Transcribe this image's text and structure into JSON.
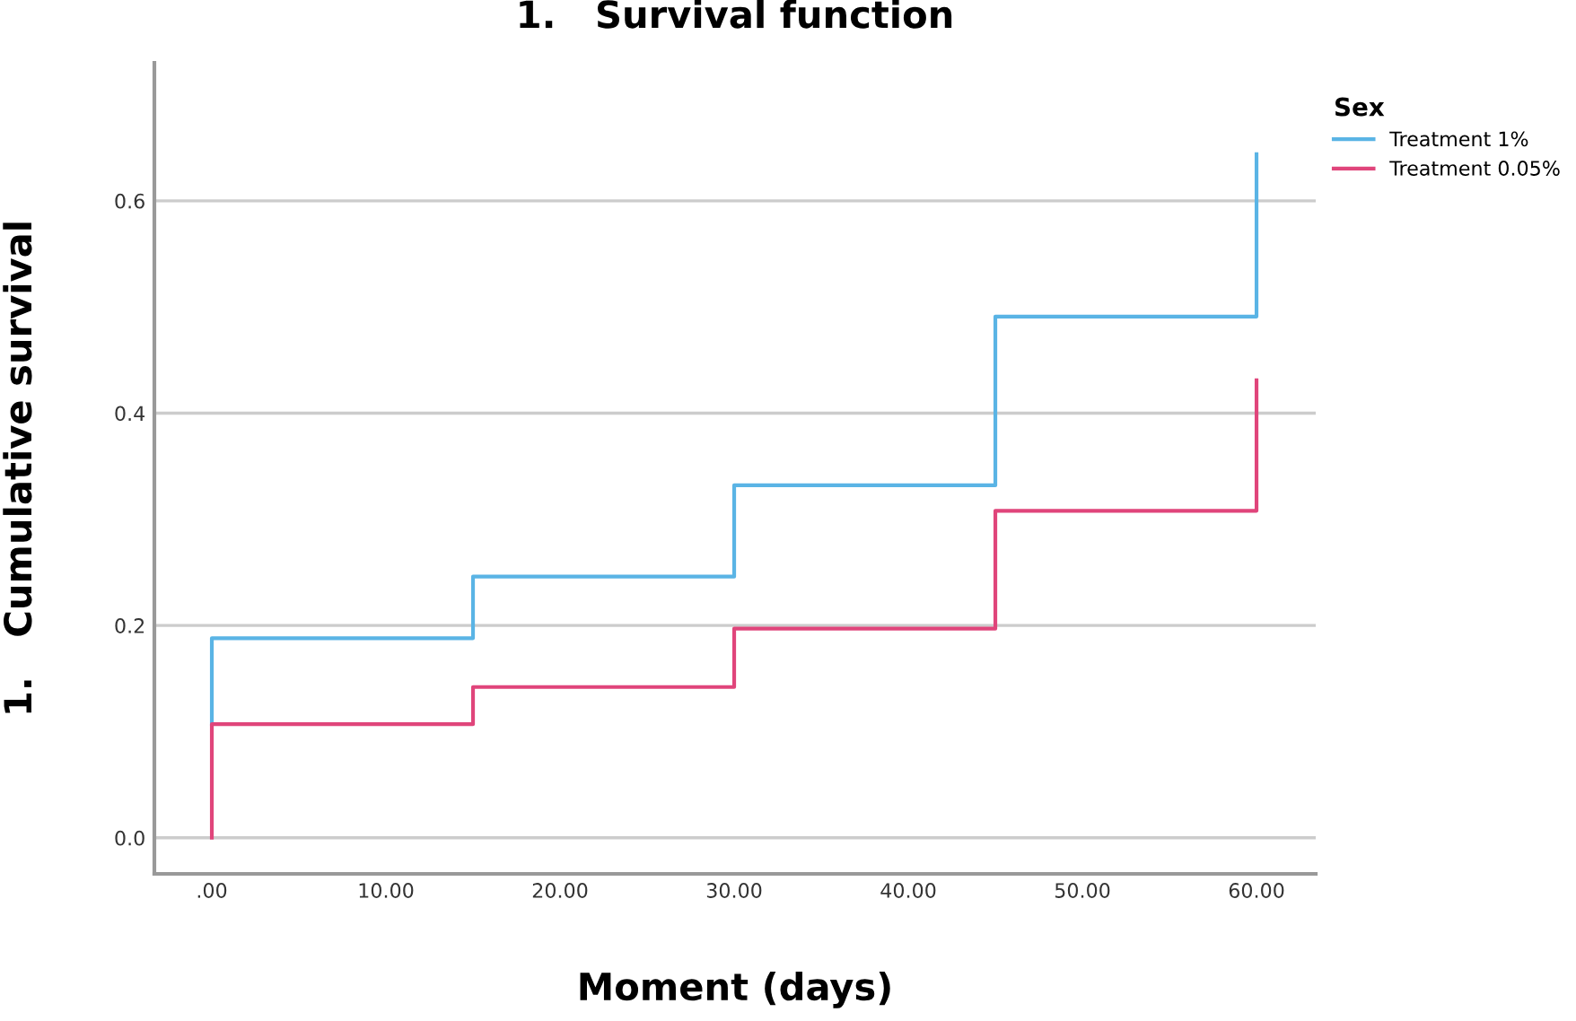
{
  "chart_data": {
    "type": "step",
    "title": "1.   Survival function",
    "xlabel": "Moment (days)",
    "ylabel": "1.   Cumulative survival",
    "legend_title": "Sex",
    "series": [
      {
        "name": "Treatment 1%",
        "color": "#5ab4e5",
        "x": [
          0,
          0,
          15,
          30,
          45,
          60,
          60
        ],
        "values": [
          0.107,
          0.188,
          0.246,
          0.332,
          0.491,
          0.491,
          0.644
        ]
      },
      {
        "name": "Treatment 0.05%",
        "color": "#e0457b",
        "x": [
          0,
          0,
          15,
          30,
          45,
          60,
          60
        ],
        "values": [
          0,
          0.107,
          0.142,
          0.197,
          0.308,
          0.308,
          0.431
        ]
      }
    ],
    "xlim": [
      -3.3,
      63.4
    ],
    "xticks": [
      {
        "value": 0,
        "label": ".00"
      },
      {
        "value": 10,
        "label": "10.00"
      },
      {
        "value": 20,
        "label": "20.00"
      },
      {
        "value": 30,
        "label": "30.00"
      },
      {
        "value": 40,
        "label": "40.00"
      },
      {
        "value": 50,
        "label": "50.00"
      },
      {
        "value": 60,
        "label": "60.00"
      }
    ],
    "ylim": [
      -0.034,
      0.73
    ],
    "yticks": [
      {
        "value": 0,
        "label": "0.0"
      },
      {
        "value": 0.2,
        "label": "0.2"
      },
      {
        "value": 0.4,
        "label": "0.4"
      },
      {
        "value": 0.6,
        "label": "0.6"
      }
    ],
    "grid": "y",
    "legend": "top right"
  }
}
